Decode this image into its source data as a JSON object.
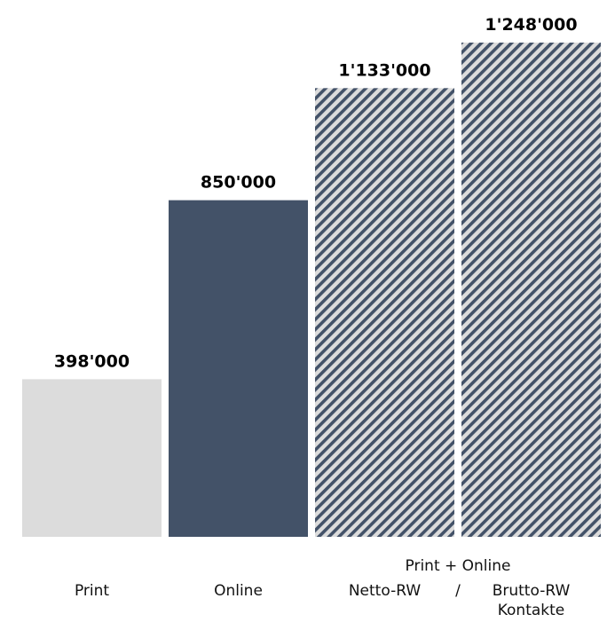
{
  "chart_data": {
    "type": "bar",
    "categories": [
      "Print",
      "Online",
      "Netto-RW",
      "Brutto-RW Kontakte"
    ],
    "category_label_lines": [
      [
        "Print"
      ],
      [
        "Online"
      ],
      [
        "Netto-RW"
      ],
      [
        "Brutto-RW",
        "Kontakte"
      ]
    ],
    "group_label": "Print + Online",
    "group_label_categories": [
      "Netto-RW",
      "Brutto-RW Kontakte"
    ],
    "group_separator": "/",
    "values": [
      398000,
      850000,
      1133000,
      1248000
    ],
    "value_labels": [
      "398'000",
      "850'000",
      "1'133'000",
      "1'248'000"
    ],
    "ylim": [
      0,
      1248000
    ],
    "bar_styles": [
      "solid-light",
      "solid-dark",
      "hatched",
      "hatched"
    ],
    "colors": {
      "light": "#dcdcdc",
      "dark": "#435268",
      "hatch_bg": "#dcdcdc",
      "hatch_line": "#435268"
    },
    "grid": false,
    "legend": "none",
    "title": "",
    "xlabel": "",
    "ylabel": ""
  }
}
